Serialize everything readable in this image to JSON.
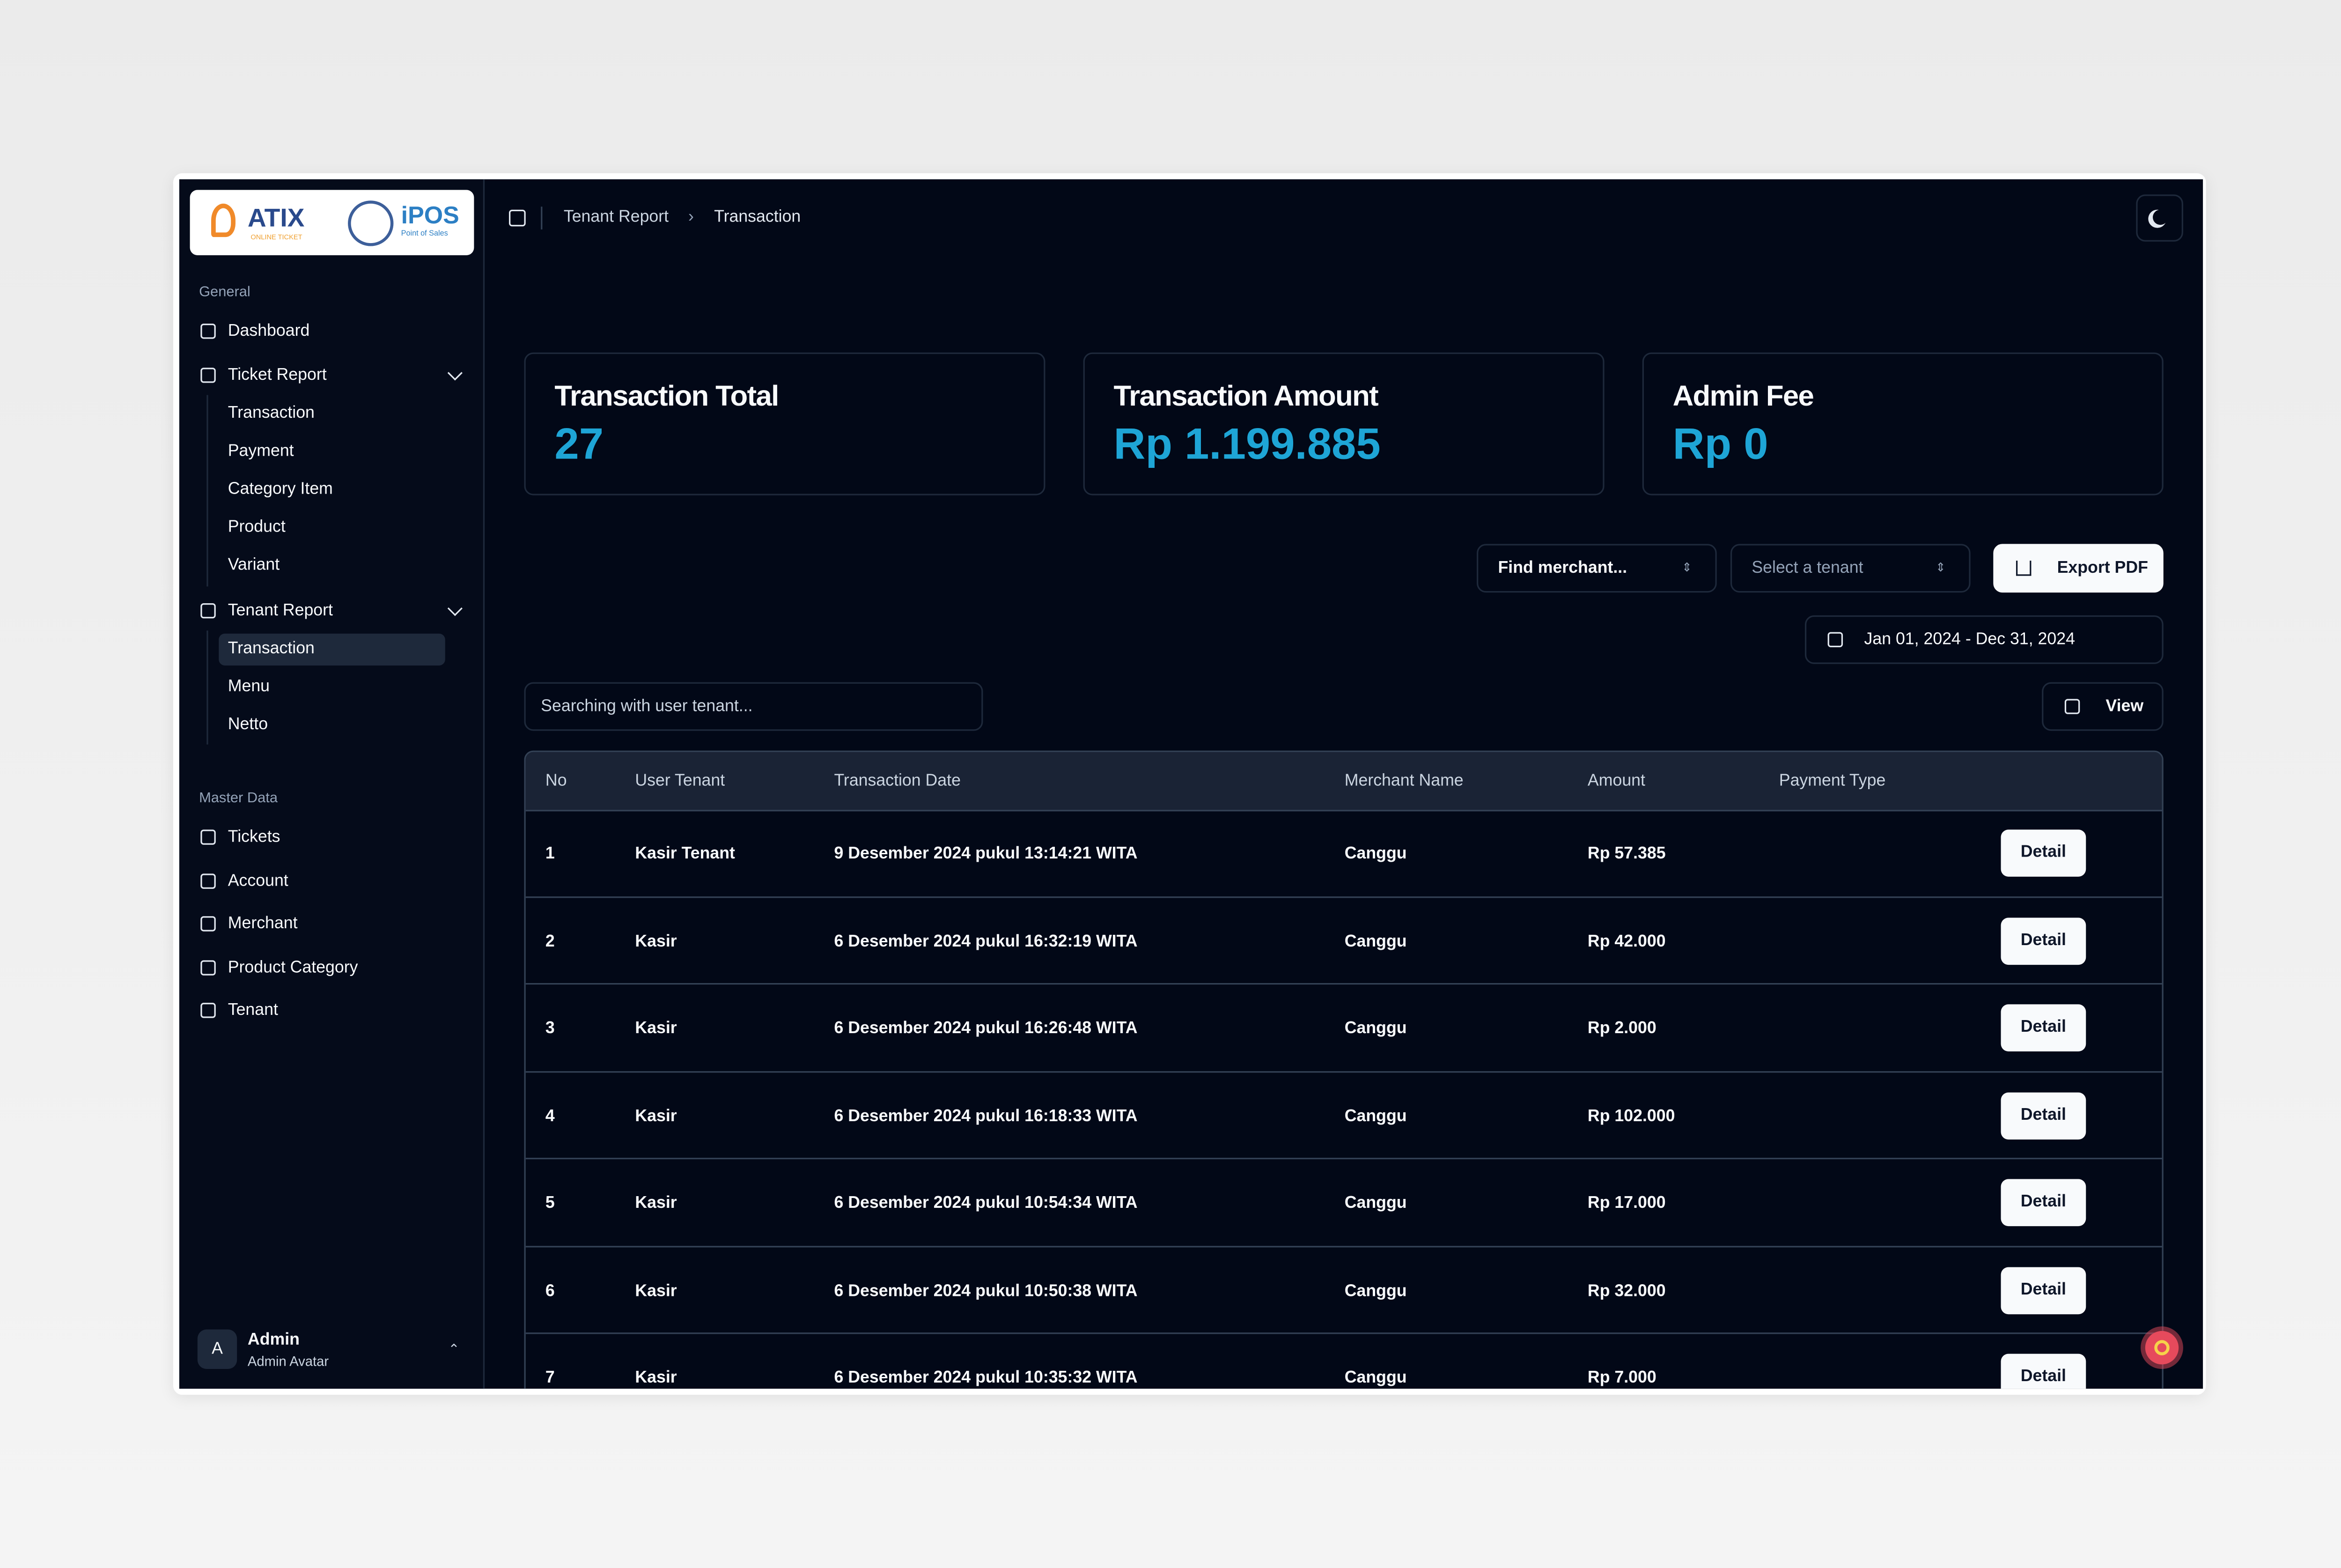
{
  "logos": {
    "atix": "ATIX",
    "atix_tag": "ONLINE TICKET",
    "ipos": "iPOS",
    "ipos_tag": "Point of Sales"
  },
  "sidebar": {
    "groups": [
      {
        "label": "General",
        "items": [
          {
            "label": "Dashboard"
          },
          {
            "label": "Ticket Report",
            "children": [
              "Transaction",
              "Payment",
              "Category Item",
              "Product",
              "Variant"
            ]
          },
          {
            "label": "Tenant Report",
            "children": [
              "Transaction",
              "Menu",
              "Netto"
            ]
          }
        ]
      },
      {
        "label": "Master Data",
        "items": [
          {
            "label": "Tickets"
          },
          {
            "label": "Account"
          },
          {
            "label": "Merchant"
          },
          {
            "label": "Product Category"
          },
          {
            "label": "Tenant"
          }
        ]
      }
    ],
    "user": {
      "initial": "A",
      "name": "Admin",
      "subtitle": "Admin Avatar"
    }
  },
  "breadcrumb": [
    "Tenant Report",
    "Transaction"
  ],
  "stats": [
    {
      "label": "Transaction Total",
      "value": "27"
    },
    {
      "label": "Transaction Amount",
      "value": "Rp 1.199.885"
    },
    {
      "label": "Admin Fee",
      "value": "Rp 0"
    }
  ],
  "filters": {
    "merchant": "Find merchant...",
    "tenant": "Select a tenant",
    "export": "Export PDF",
    "date_range": "Jan 01, 2024 - Dec 31, 2024",
    "search": "Searching with user tenant...",
    "view": "View"
  },
  "table": {
    "columns": [
      "No",
      "User Tenant",
      "Transaction Date",
      "Merchant Name",
      "Amount",
      "Payment Type"
    ],
    "action": "Detail",
    "rows": [
      [
        1,
        "Kasir Tenant",
        "9 Desember 2024 pukul 13:14:21 WITA",
        "Canggu",
        "Rp 57.385"
      ],
      [
        2,
        "Kasir",
        "6 Desember 2024 pukul 16:32:19 WITA",
        "Canggu",
        "Rp 42.000"
      ],
      [
        3,
        "Kasir",
        "6 Desember 2024 pukul 16:26:48 WITA",
        "Canggu",
        "Rp 2.000"
      ],
      [
        4,
        "Kasir",
        "6 Desember 2024 pukul 16:18:33 WITA",
        "Canggu",
        "Rp 102.000"
      ],
      [
        5,
        "Kasir",
        "6 Desember 2024 pukul 10:54:34 WITA",
        "Canggu",
        "Rp 17.000"
      ],
      [
        6,
        "Kasir",
        "6 Desember 2024 pukul 10:50:38 WITA",
        "Canggu",
        "Rp 32.000"
      ],
      [
        7,
        "Kasir",
        "6 Desember 2024 pukul 10:35:32 WITA",
        "Canggu",
        "Rp 7.000"
      ]
    ]
  }
}
